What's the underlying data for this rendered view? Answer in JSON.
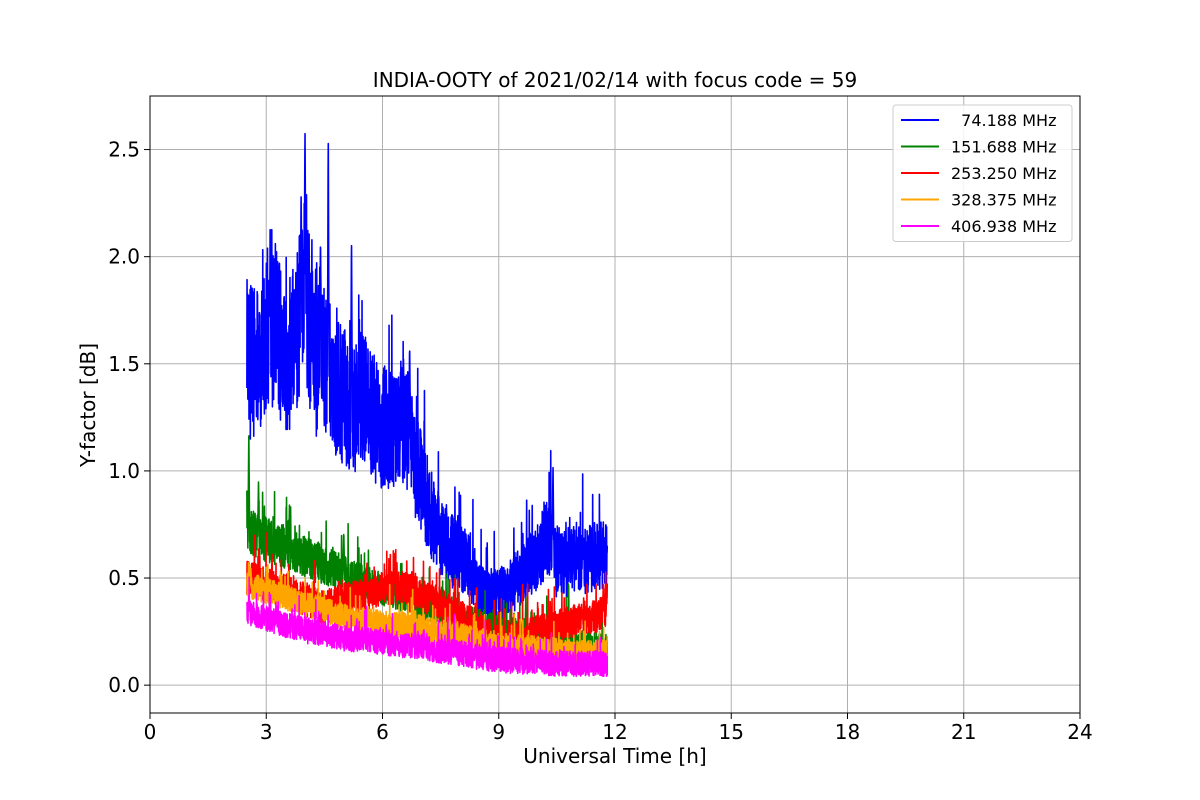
{
  "chart_data": {
    "type": "line",
    "title": "INDIA-OOTY of 2021/02/14 with focus code = 59",
    "xlabel": "Universal Time [h]",
    "ylabel": "Y-factor [dB]",
    "xlim": [
      0,
      24
    ],
    "ylim": [
      -0.13,
      2.75
    ],
    "xticks": [
      0,
      3,
      6,
      9,
      12,
      15,
      18,
      21,
      24
    ],
    "xtick_labels": [
      "0",
      "3",
      "6",
      "9",
      "12",
      "15",
      "18",
      "21",
      "24"
    ],
    "yticks": [
      0.0,
      0.5,
      1.0,
      1.5,
      2.0,
      2.5
    ],
    "ytick_labels": [
      "0.0",
      "0.5",
      "1.0",
      "1.5",
      "2.0",
      "2.5"
    ],
    "grid": true,
    "legend_position": "top-right",
    "series": [
      {
        "name": "  74.188 MHz",
        "color": "#0000ff",
        "x": [
          2.5,
          2.75,
          3.0,
          3.25,
          3.5,
          3.75,
          4.0,
          4.25,
          4.5,
          4.75,
          5.0,
          5.25,
          5.5,
          5.75,
          6.0,
          6.25,
          6.5,
          6.75,
          7.0,
          7.25,
          7.5,
          7.75,
          8.0,
          8.25,
          8.5,
          8.75,
          9.0,
          9.25,
          9.5,
          9.75,
          10.0,
          10.25,
          10.5,
          10.75,
          11.0,
          11.25,
          11.5,
          11.8
        ],
        "y": [
          1.55,
          1.5,
          1.65,
          1.7,
          1.5,
          1.6,
          1.85,
          1.5,
          1.55,
          1.4,
          1.35,
          1.3,
          1.35,
          1.25,
          1.2,
          1.2,
          1.25,
          1.15,
          0.95,
          0.8,
          0.7,
          0.65,
          0.6,
          0.55,
          0.45,
          0.4,
          0.42,
          0.45,
          0.5,
          0.55,
          0.6,
          0.7,
          0.6,
          0.55,
          0.6,
          0.58,
          0.6,
          0.62
        ],
        "peaks": [
          [
            4.0,
            2.6
          ],
          [
            4.6,
            2.58
          ],
          [
            3.9,
            2.3
          ],
          [
            5.2,
            2.1
          ],
          [
            4.4,
            2.1
          ],
          [
            6.7,
            1.6
          ],
          [
            3.1,
            2.0
          ],
          [
            10.4,
            1.03
          ]
        ]
      },
      {
        "name": "151.688 MHz",
        "color": "#008000",
        "x": [
          2.5,
          2.75,
          3.0,
          3.5,
          4.0,
          4.5,
          5.0,
          5.5,
          6.0,
          6.5,
          7.0,
          7.5,
          8.0,
          8.5,
          9.0,
          9.5,
          10.0,
          10.5,
          11.0,
          11.5,
          11.8
        ],
        "y": [
          0.72,
          0.7,
          0.68,
          0.64,
          0.6,
          0.56,
          0.52,
          0.48,
          0.45,
          0.42,
          0.38,
          0.35,
          0.3,
          0.28,
          0.25,
          0.24,
          0.22,
          0.2,
          0.18,
          0.17,
          0.16
        ],
        "peaks": [
          [
            2.55,
            1.18
          ],
          [
            2.8,
            0.95
          ],
          [
            3.6,
            0.85
          ],
          [
            5.0,
            0.72
          ],
          [
            9.7,
            0.42
          ],
          [
            10.8,
            0.5
          ]
        ]
      },
      {
        "name": "253.250 MHz",
        "color": "#ff0000",
        "x": [
          2.5,
          3.0,
          3.5,
          4.0,
          4.5,
          5.0,
          5.5,
          6.0,
          6.5,
          7.0,
          7.5,
          8.0,
          8.5,
          9.0,
          9.5,
          10.0,
          10.5,
          11.0,
          11.5,
          11.8
        ],
        "y": [
          0.5,
          0.47,
          0.44,
          0.4,
          0.36,
          0.4,
          0.42,
          0.45,
          0.46,
          0.42,
          0.38,
          0.32,
          0.27,
          0.2,
          0.22,
          0.25,
          0.28,
          0.3,
          0.32,
          0.35
        ],
        "peaks": [
          [
            6.3,
            0.6
          ],
          [
            5.6,
            0.58
          ],
          [
            11.7,
            0.48
          ]
        ]
      },
      {
        "name": "328.375 MHz",
        "color": "#ffa500",
        "x": [
          2.5,
          3.0,
          3.5,
          4.0,
          4.5,
          5.0,
          5.5,
          6.0,
          6.5,
          7.0,
          7.5,
          8.0,
          8.5,
          9.0,
          9.5,
          10.0,
          10.5,
          11.0,
          11.5,
          11.8
        ],
        "y": [
          0.47,
          0.44,
          0.41,
          0.38,
          0.35,
          0.32,
          0.3,
          0.29,
          0.28,
          0.27,
          0.25,
          0.23,
          0.21,
          0.19,
          0.18,
          0.17,
          0.16,
          0.15,
          0.15,
          0.15
        ],
        "peaks": [
          [
            2.6,
            0.55
          ]
        ]
      },
      {
        "name": "406.938 MHz",
        "color": "#ff00ff",
        "x": [
          2.5,
          3.0,
          3.5,
          4.0,
          4.5,
          5.0,
          5.5,
          6.0,
          6.5,
          7.0,
          7.5,
          8.0,
          8.5,
          9.0,
          9.5,
          10.0,
          10.5,
          11.0,
          11.5,
          11.8
        ],
        "y": [
          0.34,
          0.31,
          0.28,
          0.26,
          0.24,
          0.22,
          0.21,
          0.2,
          0.19,
          0.18,
          0.16,
          0.15,
          0.13,
          0.12,
          0.11,
          0.11,
          0.1,
          0.1,
          0.1,
          0.1
        ],
        "peaks": [
          [
            2.55,
            0.42
          ]
        ]
      }
    ]
  }
}
